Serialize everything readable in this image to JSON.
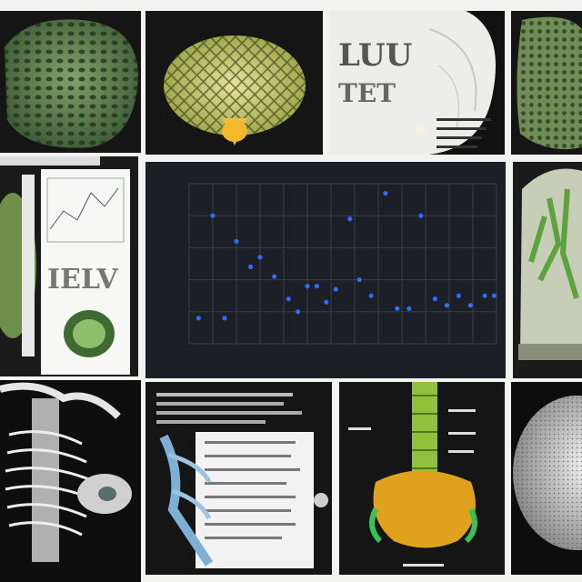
{
  "tiles": {
    "lung_texture": {},
    "coral_sponge": {},
    "white_scan": {
      "letters_top": "LUU",
      "letters_bottom": "TET"
    },
    "green_texture": {},
    "document_panel": {
      "big_letters": "IELV"
    },
    "scatter_chart": {},
    "green_branches": {},
    "white_skeleton": {},
    "blue_scan_document": {},
    "spine_specimen": {},
    "spiky_sphere": {}
  },
  "chart_data": {
    "type": "scatter",
    "title": "",
    "xlabel": "",
    "ylabel": "",
    "xlim": [
      0,
      13
    ],
    "ylim": [
      0,
      5
    ],
    "grid": true,
    "x_ticks": [
      0,
      1,
      2,
      3,
      4,
      5,
      6,
      7,
      8,
      9,
      10,
      11,
      12,
      13
    ],
    "y_ticks": [
      0,
      1,
      2,
      3,
      4,
      5
    ],
    "point_color": "#2f6bff",
    "points": [
      {
        "x": 0.4,
        "y": 0.8
      },
      {
        "x": 1.0,
        "y": 4.0
      },
      {
        "x": 1.5,
        "y": 0.8
      },
      {
        "x": 2.0,
        "y": 3.2
      },
      {
        "x": 2.6,
        "y": 2.4
      },
      {
        "x": 3.0,
        "y": 2.7
      },
      {
        "x": 3.6,
        "y": 2.1
      },
      {
        "x": 4.2,
        "y": 1.4
      },
      {
        "x": 4.6,
        "y": 1.0
      },
      {
        "x": 5.0,
        "y": 1.8
      },
      {
        "x": 5.4,
        "y": 1.8
      },
      {
        "x": 5.8,
        "y": 1.3
      },
      {
        "x": 6.2,
        "y": 1.7
      },
      {
        "x": 6.8,
        "y": 3.9
      },
      {
        "x": 7.2,
        "y": 2.0
      },
      {
        "x": 7.7,
        "y": 1.5
      },
      {
        "x": 8.3,
        "y": 4.7
      },
      {
        "x": 8.8,
        "y": 1.1
      },
      {
        "x": 9.3,
        "y": 1.1
      },
      {
        "x": 9.8,
        "y": 4.0
      },
      {
        "x": 10.4,
        "y": 1.4
      },
      {
        "x": 10.9,
        "y": 1.2
      },
      {
        "x": 11.4,
        "y": 1.5
      },
      {
        "x": 11.9,
        "y": 1.2
      },
      {
        "x": 12.5,
        "y": 1.5
      },
      {
        "x": 12.9,
        "y": 1.5
      }
    ],
    "colors": {
      "panel_bg": "#1c1f26",
      "grid": "#3a3f4a",
      "point": "#2f6bff"
    }
  }
}
